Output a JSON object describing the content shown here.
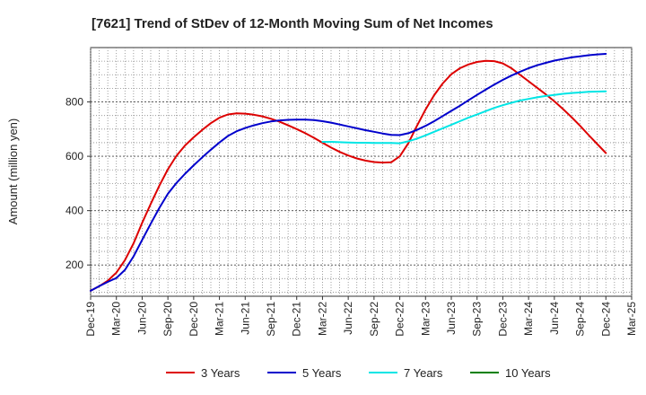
{
  "chart_data": {
    "type": "line",
    "title": "[7621]  Trend of StDev of 12-Month Moving Sum of Net Incomes",
    "ylabel": "Amount (million yen)",
    "xlabel": "",
    "ylim": [
      85,
      1000
    ],
    "yticks": [
      200,
      400,
      600,
      800
    ],
    "xtick_labels": [
      "Dec-19",
      "Mar-20",
      "Jun-20",
      "Sep-20",
      "Dec-20",
      "Mar-21",
      "Jun-21",
      "Sep-21",
      "Dec-21",
      "Mar-22",
      "Jun-22",
      "Sep-22",
      "Dec-22",
      "Mar-23",
      "Jun-23",
      "Sep-23",
      "Dec-23",
      "Mar-24",
      "Jun-24",
      "Sep-24",
      "Dec-24",
      "Mar-25"
    ],
    "grid": true,
    "legend_position": "bottom",
    "series": [
      {
        "name": "3 Years",
        "color": "#dd0000",
        "points": [
          [
            "Dec-19",
            105
          ],
          [
            "Jan-20",
            122
          ],
          [
            "Feb-20",
            142
          ],
          [
            "Mar-20",
            172
          ],
          [
            "Apr-20",
            218
          ],
          [
            "May-20",
            280
          ],
          [
            "Jun-20",
            355
          ],
          [
            "Jul-20",
            425
          ],
          [
            "Aug-20",
            492
          ],
          [
            "Sep-20",
            552
          ],
          [
            "Oct-20",
            602
          ],
          [
            "Nov-20",
            640
          ],
          [
            "Dec-20",
            670
          ],
          [
            "Jan-21",
            697
          ],
          [
            "Feb-21",
            722
          ],
          [
            "Mar-21",
            742
          ],
          [
            "Apr-21",
            754
          ],
          [
            "May-21",
            758
          ],
          [
            "Jun-21",
            757
          ],
          [
            "Jul-21",
            753
          ],
          [
            "Aug-21",
            747
          ],
          [
            "Sep-21",
            738
          ],
          [
            "Oct-21",
            727
          ],
          [
            "Nov-21",
            714
          ],
          [
            "Dec-21",
            700
          ],
          [
            "Jan-22",
            685
          ],
          [
            "Feb-22",
            668
          ],
          [
            "Mar-22",
            650
          ],
          [
            "Apr-22",
            632
          ],
          [
            "May-22",
            616
          ],
          [
            "Jun-22",
            603
          ],
          [
            "Jul-22",
            592
          ],
          [
            "Aug-22",
            584
          ],
          [
            "Sep-22",
            579
          ],
          [
            "Oct-22",
            577
          ],
          [
            "Nov-22",
            578
          ],
          [
            "Dec-22",
            600
          ],
          [
            "Jan-23",
            648
          ],
          [
            "Feb-23",
            712
          ],
          [
            "Mar-23",
            772
          ],
          [
            "Apr-23",
            825
          ],
          [
            "May-23",
            868
          ],
          [
            "Jun-23",
            902
          ],
          [
            "Jul-23",
            924
          ],
          [
            "Aug-23",
            938
          ],
          [
            "Sep-23",
            947
          ],
          [
            "Oct-23",
            951
          ],
          [
            "Nov-23",
            950
          ],
          [
            "Dec-23",
            942
          ],
          [
            "Jan-24",
            924
          ],
          [
            "Feb-24",
            900
          ],
          [
            "Mar-24",
            876
          ],
          [
            "Apr-24",
            852
          ],
          [
            "May-24",
            828
          ],
          [
            "Jun-24",
            802
          ],
          [
            "Jul-24",
            774
          ],
          [
            "Aug-24",
            744
          ],
          [
            "Sep-24",
            712
          ],
          [
            "Oct-24",
            678
          ],
          [
            "Nov-24",
            645
          ],
          [
            "Dec-24",
            612
          ]
        ]
      },
      {
        "name": "5 Years",
        "color": "#0000cc",
        "points": [
          [
            "Dec-19",
            105
          ],
          [
            "Jan-20",
            122
          ],
          [
            "Feb-20",
            138
          ],
          [
            "Mar-20",
            152
          ],
          [
            "Apr-20",
            182
          ],
          [
            "May-20",
            232
          ],
          [
            "Jun-20",
            292
          ],
          [
            "Jul-20",
            352
          ],
          [
            "Aug-20",
            410
          ],
          [
            "Sep-20",
            462
          ],
          [
            "Oct-20",
            502
          ],
          [
            "Nov-20",
            536
          ],
          [
            "Dec-20",
            567
          ],
          [
            "Jan-21",
            596
          ],
          [
            "Feb-21",
            624
          ],
          [
            "Mar-21",
            651
          ],
          [
            "Apr-21",
            675
          ],
          [
            "May-21",
            692
          ],
          [
            "Jun-21",
            704
          ],
          [
            "Jul-21",
            714
          ],
          [
            "Aug-21",
            722
          ],
          [
            "Sep-21",
            728
          ],
          [
            "Oct-21",
            732
          ],
          [
            "Nov-21",
            734
          ],
          [
            "Dec-21",
            735
          ],
          [
            "Jan-22",
            735
          ],
          [
            "Feb-22",
            733
          ],
          [
            "Mar-22",
            729
          ],
          [
            "Apr-22",
            724
          ],
          [
            "May-22",
            717
          ],
          [
            "Jun-22",
            710
          ],
          [
            "Jul-22",
            703
          ],
          [
            "Aug-22",
            696
          ],
          [
            "Sep-22",
            690
          ],
          [
            "Oct-22",
            684
          ],
          [
            "Nov-22",
            679
          ],
          [
            "Dec-22",
            678
          ],
          [
            "Jan-23",
            685
          ],
          [
            "Feb-23",
            697
          ],
          [
            "Mar-23",
            712
          ],
          [
            "Apr-23",
            729
          ],
          [
            "May-23",
            748
          ],
          [
            "Jun-23",
            767
          ],
          [
            "Jul-23",
            786
          ],
          [
            "Aug-23",
            806
          ],
          [
            "Sep-23",
            826
          ],
          [
            "Oct-23",
            845
          ],
          [
            "Nov-23",
            864
          ],
          [
            "Dec-23",
            881
          ],
          [
            "Jan-24",
            897
          ],
          [
            "Feb-24",
            911
          ],
          [
            "Mar-24",
            924
          ],
          [
            "Apr-24",
            935
          ],
          [
            "May-24",
            944
          ],
          [
            "Jun-24",
            952
          ],
          [
            "Jul-24",
            958
          ],
          [
            "Aug-24",
            964
          ],
          [
            "Sep-24",
            968
          ],
          [
            "Oct-24",
            972
          ],
          [
            "Nov-24",
            975
          ],
          [
            "Dec-24",
            977
          ]
        ]
      },
      {
        "name": "7 Years",
        "color": "#00e5e5",
        "points": [
          [
            "Mar-22",
            653
          ],
          [
            "Apr-22",
            653
          ],
          [
            "May-22",
            652
          ],
          [
            "Jun-22",
            651
          ],
          [
            "Jul-22",
            650
          ],
          [
            "Aug-22",
            650
          ],
          [
            "Sep-22",
            649
          ],
          [
            "Oct-22",
            649
          ],
          [
            "Nov-22",
            649
          ],
          [
            "Dec-22",
            648
          ],
          [
            "Jan-23",
            655
          ],
          [
            "Feb-23",
            665
          ],
          [
            "Mar-23",
            677
          ],
          [
            "Apr-23",
            690
          ],
          [
            "May-23",
            703
          ],
          [
            "Jun-23",
            716
          ],
          [
            "Jul-23",
            729
          ],
          [
            "Aug-23",
            742
          ],
          [
            "Sep-23",
            754
          ],
          [
            "Oct-23",
            766
          ],
          [
            "Nov-23",
            778
          ],
          [
            "Dec-23",
            788
          ],
          [
            "Jan-24",
            797
          ],
          [
            "Feb-24",
            805
          ],
          [
            "Mar-24",
            811
          ],
          [
            "Apr-24",
            817
          ],
          [
            "May-24",
            822
          ],
          [
            "Jun-24",
            826
          ],
          [
            "Jul-24",
            830
          ],
          [
            "Aug-24",
            833
          ],
          [
            "Sep-24",
            835
          ],
          [
            "Oct-24",
            837
          ],
          [
            "Nov-24",
            838
          ],
          [
            "Dec-24",
            839
          ]
        ]
      },
      {
        "name": "10 Years",
        "color": "#008000",
        "points": []
      }
    ]
  }
}
